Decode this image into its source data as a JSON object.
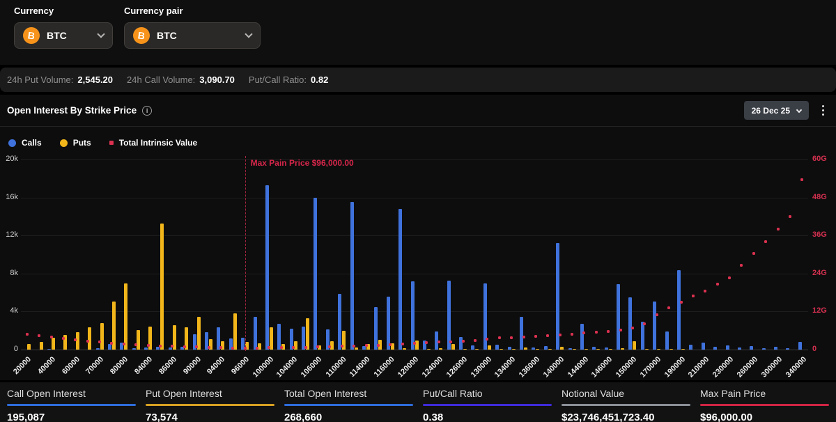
{
  "filters": {
    "currency_label": "Currency",
    "currency_value": "BTC",
    "pair_label": "Currency pair",
    "pair_value": "BTC",
    "coin_symbol": "B"
  },
  "stats_bar": [
    {
      "label": "24h Put Volume:",
      "value": "2,545.20"
    },
    {
      "label": "24h Call Volume:",
      "value": "3,090.70"
    },
    {
      "label": "Put/Call Ratio:",
      "value": "0.82"
    }
  ],
  "chart_header": {
    "title": "Open Interest By Strike Price",
    "info_icon_glyph": "i",
    "date_selector": "26 Dec 25"
  },
  "legend": [
    {
      "label": "Calls",
      "color": "#3f72dc",
      "marker": "circle"
    },
    {
      "label": "Puts",
      "color": "#f2b61a",
      "marker": "circle"
    },
    {
      "label": "Total Intrinsic Value",
      "color": "#dc3150",
      "marker": "square"
    }
  ],
  "chart_data": {
    "type": "bar",
    "title": "Open Interest By Strike Price",
    "xlabel": "Strike Price",
    "left_axis": {
      "max": 20000,
      "tick_values": [
        0,
        4000,
        8000,
        12000,
        16000,
        20000
      ],
      "tick_labels": [
        "0",
        "4k",
        "8k",
        "12k",
        "16k",
        "20k"
      ]
    },
    "right_axis": {
      "max_g": 60,
      "tick_values_g": [
        0,
        12,
        24,
        36,
        48,
        60
      ],
      "tick_labels": [
        "0",
        "12G",
        "24G",
        "36G",
        "48G",
        "60G"
      ],
      "color": "#d3304f"
    },
    "max_pain": {
      "strike": 96000,
      "annotation": "Max Pain Price $96,000.00",
      "line_color": "#a3243e"
    },
    "strikes": [
      20000,
      30000,
      40000,
      50000,
      60000,
      65000,
      70000,
      75000,
      80000,
      82000,
      84000,
      85000,
      86000,
      88000,
      90000,
      92000,
      94000,
      95000,
      96000,
      98000,
      100000,
      102000,
      104000,
      105000,
      106000,
      108000,
      110000,
      112000,
      114000,
      115000,
      116000,
      118000,
      120000,
      122000,
      124000,
      125000,
      126000,
      128000,
      130000,
      132000,
      134000,
      135000,
      136000,
      138000,
      140000,
      142000,
      144000,
      145000,
      146000,
      148000,
      150000,
      160000,
      170000,
      180000,
      190000,
      200000,
      210000,
      220000,
      230000,
      240000,
      260000,
      280000,
      300000,
      320000,
      340000
    ],
    "labeled_strikes": [
      20000,
      40000,
      60000,
      70000,
      80000,
      84000,
      86000,
      90000,
      94000,
      96000,
      100000,
      104000,
      106000,
      110000,
      114000,
      116000,
      120000,
      124000,
      126000,
      130000,
      134000,
      136000,
      140000,
      144000,
      146000,
      150000,
      170000,
      190000,
      210000,
      230000,
      260000,
      300000,
      340000
    ],
    "series": [
      {
        "name": "Calls",
        "axis": "left",
        "color": "#3f72dc",
        "values": [
          0,
          0,
          60,
          0,
          0,
          0,
          120,
          600,
          700,
          150,
          200,
          300,
          200,
          300,
          1590,
          1840,
          2330,
          1200,
          1230,
          3430,
          17280,
          2750,
          2200,
          2450,
          16000,
          2130,
          5880,
          15520,
          400,
          4490,
          5570,
          14790,
          7180,
          960,
          1890,
          7280,
          1300,
          420,
          6990,
          490,
          320,
          3430,
          220,
          400,
          11230,
          150,
          2700,
          300,
          200,
          6900,
          5510,
          2960,
          5050,
          1890,
          8380,
          500,
          700,
          300,
          450,
          200,
          350,
          150,
          300,
          120,
          800
        ]
      },
      {
        "name": "Puts",
        "axis": "left",
        "color": "#f2b61a",
        "values": [
          600,
          800,
          1230,
          1520,
          1840,
          2330,
          2820,
          5050,
          6980,
          2080,
          2450,
          13240,
          2570,
          2330,
          3430,
          1100,
          860,
          3800,
          800,
          640,
          2330,
          610,
          860,
          3270,
          420,
          860,
          1960,
          200,
          600,
          1060,
          660,
          180,
          990,
          100,
          120,
          620,
          100,
          80,
          420,
          60,
          60,
          200,
          100,
          60,
          300,
          50,
          100,
          50,
          50,
          120,
          860,
          100,
          100,
          50,
          50,
          0,
          0,
          0,
          0,
          0,
          0,
          0,
          0,
          0,
          0
        ]
      },
      {
        "name": "Total Intrinsic Value",
        "axis": "right",
        "unit": "G",
        "color": "#dc3150",
        "values": [
          4.8,
          4.4,
          3.9,
          3.5,
          3.0,
          2.7,
          2.4,
          2.0,
          1.7,
          1.5,
          1.3,
          1.15,
          1.0,
          0.9,
          0.8,
          0.7,
          0.6,
          0.55,
          0.5,
          0.55,
          0.6,
          0.65,
          0.7,
          0.75,
          0.8,
          0.9,
          1.05,
          1.15,
          1.25,
          1.4,
          1.5,
          1.7,
          1.9,
          2.1,
          2.35,
          2.5,
          2.7,
          2.9,
          3.4,
          3.7,
          3.8,
          4.0,
          4.1,
          4.4,
          4.6,
          4.9,
          5.2,
          5.5,
          5.8,
          6.2,
          6.8,
          8.1,
          11.0,
          13.2,
          14.9,
          16.9,
          18.5,
          20.7,
          22.6,
          26.6,
          30.3,
          34.0,
          38.1,
          41.9,
          53.7
        ]
      }
    ]
  },
  "summary_cards": [
    {
      "label": "Call Open Interest",
      "value": "195,087",
      "accent": "#2e6bdb"
    },
    {
      "label": "Put Open Interest",
      "value": "73,574",
      "accent": "#d7a022"
    },
    {
      "label": "Total Open Interest",
      "value": "268,660",
      "accent": "#2e6bdb"
    },
    {
      "label": "Put/Call Ratio",
      "value": "0.38",
      "accent": "#3f2ad8"
    },
    {
      "label": "Notional Value",
      "value": "$23,746,451,723.40",
      "accent": "#8b9097"
    },
    {
      "label": "Max Pain Price",
      "value": "$96,000.00",
      "accent": "#cf2443"
    }
  ]
}
